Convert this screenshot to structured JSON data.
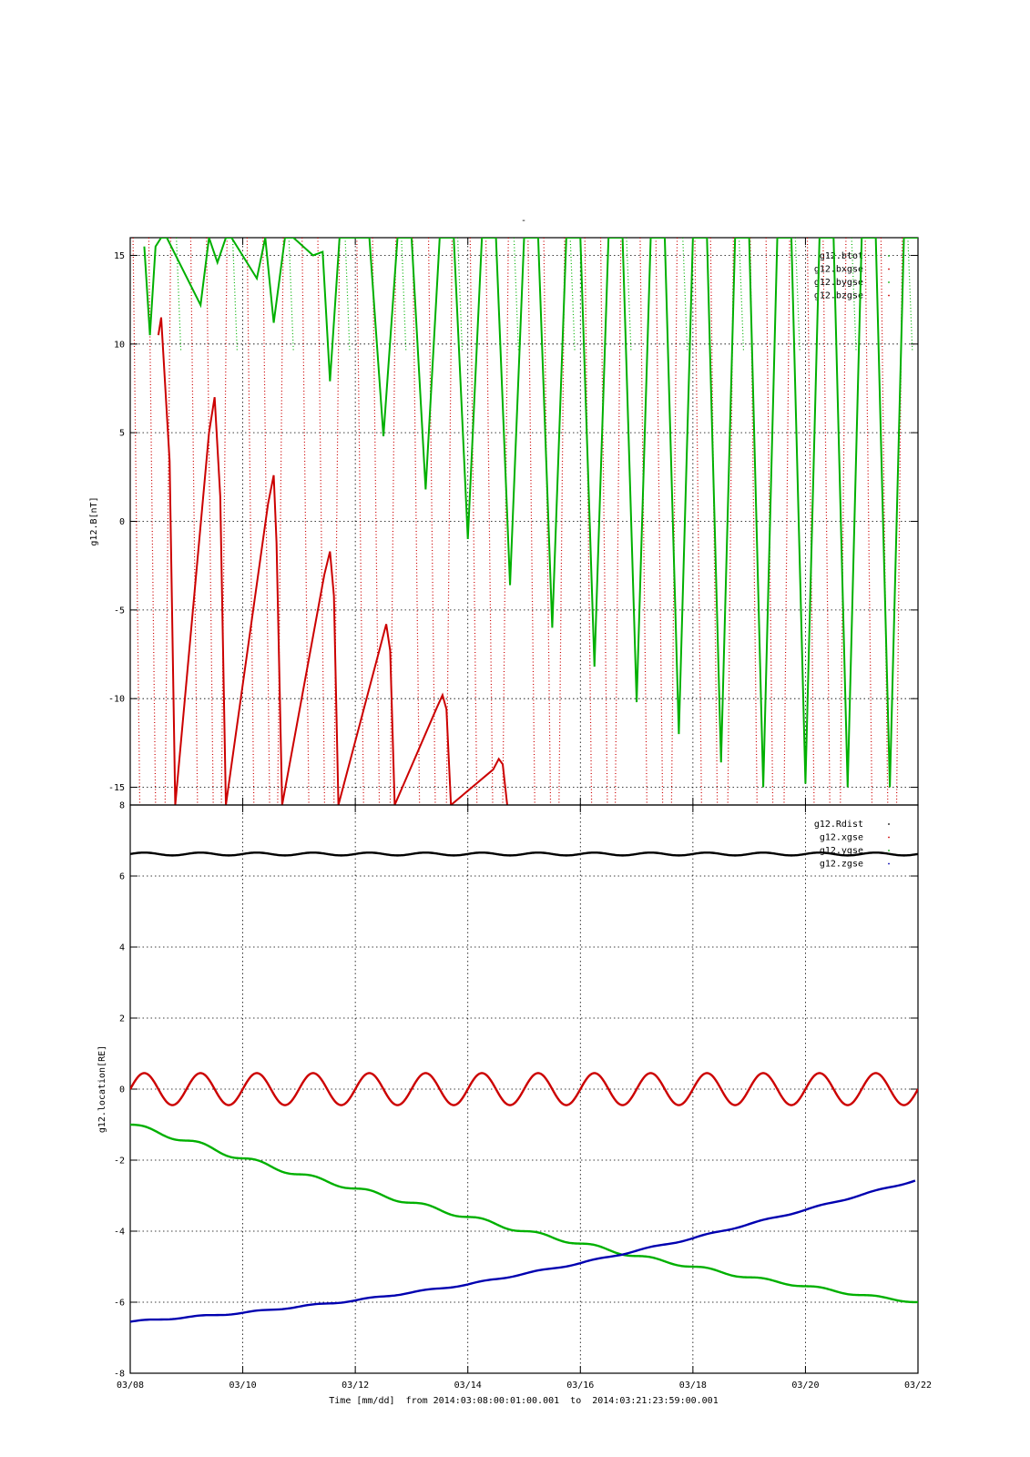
{
  "title": "-",
  "x_axis": {
    "label": "Time [mm/dd]  from 2014:03:08:00:01:00.001  to  2014:03:21:23:59:00.001",
    "start_date": "03/08",
    "end_date": "03/22",
    "tick_labels": [
      "03/08",
      "03/10",
      "03/12",
      "03/14",
      "03/16",
      "03/18",
      "03/20",
      "03/22"
    ],
    "tick_days": [
      0,
      2,
      4,
      6,
      8,
      10,
      12,
      14
    ]
  },
  "chart_data": [
    {
      "type": "line",
      "title": "",
      "ylabel": "g12.B[nT]",
      "xlabel": "",
      "xlim": [
        "03/08",
        "03/22"
      ],
      "ylim": [
        -16,
        16
      ],
      "y_ticks": [
        -15,
        -10,
        -5,
        0,
        5,
        10,
        15
      ],
      "grid": true,
      "legend_position": "top-right",
      "series": [
        {
          "name": "g12.btot",
          "color": "#00b000",
          "style": "dots"
        },
        {
          "name": "g12.bxgse",
          "color": "#cc0000",
          "style": "dots"
        },
        {
          "name": "g12.bygse",
          "color": "#00b000",
          "style": "dots",
          "x_day": [
            0.25,
            0.35,
            0.45,
            0.55,
            0.65,
            1.25,
            1.4,
            1.55,
            1.7,
            1.8,
            2.25,
            2.4,
            2.55,
            2.75,
            2.9,
            3.25,
            3.42,
            3.55,
            3.72,
            3.85,
            4.25,
            4.5,
            4.75,
            5.0,
            5.25,
            5.5,
            5.75,
            6.0,
            6.25,
            6.5,
            6.75,
            7.0,
            7.25,
            7.5,
            7.75,
            8.0,
            8.25,
            8.5,
            8.75,
            9.0,
            9.25,
            9.5,
            9.75,
            10.0,
            10.25,
            10.5,
            10.75,
            11.0,
            11.25,
            11.5,
            11.75,
            12.0,
            12.25,
            12.5,
            12.75,
            13.0,
            13.25,
            13.5,
            13.75,
            14.0
          ],
          "values": [
            15.5,
            10.5,
            15.5,
            16,
            16,
            12.2,
            16,
            14.6,
            16,
            16,
            13.7,
            16,
            11.2,
            16,
            16,
            15.0,
            15.2,
            7.9,
            16,
            16,
            16,
            4.8,
            16,
            16,
            1.8,
            16,
            16,
            -1.0,
            16,
            16,
            -3.6,
            16,
            16,
            -6.0,
            16,
            16,
            -8.2,
            16,
            16,
            -10.2,
            16,
            16,
            -12.0,
            16,
            16,
            -13.6,
            16,
            16,
            -15.0,
            16,
            16,
            -14.8,
            16,
            16,
            -15.0,
            16,
            16,
            -15.0,
            16,
            16
          ]
        },
        {
          "name": "g12.bzgse",
          "color": "#cc0000",
          "style": "dots",
          "x_day": [
            0.5,
            0.55,
            0.7,
            0.8,
            1.4,
            1.5,
            1.6,
            1.7,
            2.45,
            2.55,
            2.6,
            2.7,
            3.45,
            3.55,
            3.62,
            3.7,
            4.45,
            4.55,
            4.62,
            4.7,
            5.45,
            5.55,
            5.62,
            5.7,
            6.45,
            6.55,
            6.62,
            6.7
          ],
          "values": [
            10.5,
            11.5,
            3.4,
            -16,
            5.0,
            7.0,
            1.4,
            -16,
            1.0,
            2.6,
            -1.2,
            -16,
            -3.0,
            -1.7,
            -4.2,
            -16,
            -7.0,
            -5.8,
            -7.3,
            -16,
            -10.5,
            -9.8,
            -10.6,
            -16,
            -14.0,
            -13.4,
            -13.7,
            -16
          ]
        }
      ]
    },
    {
      "type": "line",
      "title": "",
      "ylabel": "g12.location[RE]",
      "xlabel": "",
      "xlim": [
        "03/08",
        "03/22"
      ],
      "ylim": [
        -8,
        8
      ],
      "y_ticks": [
        -8,
        -6,
        -4,
        -2,
        0,
        2,
        4,
        6,
        8
      ],
      "grid": true,
      "legend_position": "top-right",
      "series": [
        {
          "name": "g12.Rdist",
          "color": "#000000",
          "mean": 6.62,
          "amplitude": 0.04,
          "period_days": 1
        },
        {
          "name": "g12.xgse",
          "color": "#cc0000",
          "mean": 0.0,
          "amplitude": 0.45,
          "period_days": 1
        },
        {
          "name": "g12.ygse",
          "color": "#00b000",
          "x_day": [
            0,
            1,
            2,
            3,
            4,
            5,
            6,
            7,
            8,
            9,
            10,
            11,
            12,
            13,
            14
          ],
          "values": [
            -1.0,
            -1.45,
            -1.95,
            -2.4,
            -2.8,
            -3.2,
            -3.6,
            -4.0,
            -4.35,
            -4.7,
            -5.0,
            -5.3,
            -5.55,
            -5.8,
            -6.0
          ]
        },
        {
          "name": "g12.zgse",
          "color": "#0000b0",
          "x_day": [
            0,
            2,
            4,
            6,
            8,
            10,
            12,
            14
          ],
          "values": [
            -6.55,
            -6.3,
            -5.95,
            -5.5,
            -4.9,
            -4.2,
            -3.4,
            -2.55
          ]
        }
      ]
    }
  ]
}
